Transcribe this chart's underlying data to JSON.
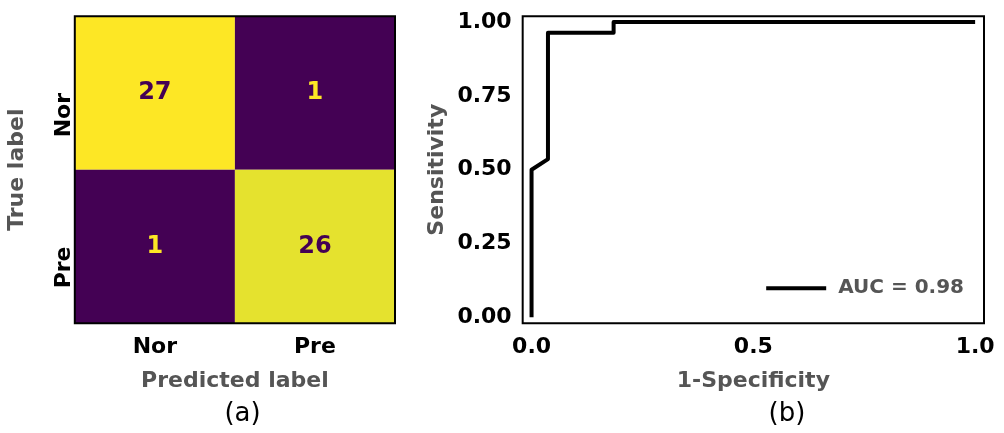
{
  "chart_data": [
    {
      "type": "heatmap",
      "categories": [
        "Nor",
        "Pre"
      ],
      "y_categories": [
        "Nor",
        "Pre"
      ],
      "cells": [
        [
          27,
          1
        ],
        [
          1,
          26
        ]
      ],
      "data_labels": true,
      "xlabel": "Predicted label",
      "ylabel": "True label",
      "annotations": [
        "(a)"
      ]
    },
    {
      "type": "line",
      "xlabel": "1-Specificity",
      "ylabel": "Sensitivity",
      "xlim": [
        -0.02,
        1.02
      ],
      "ylim": [
        -0.02,
        1.02
      ],
      "xticks": [
        {
          "value": 0,
          "label": "0.0"
        },
        {
          "value": 0.5,
          "label": "0.5"
        },
        {
          "value": 1,
          "label": "1.0"
        }
      ],
      "yticks": [
        {
          "value": 0,
          "label": "0.00"
        },
        {
          "value": 0.25,
          "label": "0.25"
        },
        {
          "value": 0.5,
          "label": "0.50"
        },
        {
          "value": 0.75,
          "label": "0.75"
        },
        {
          "value": 1,
          "label": "1.00"
        }
      ],
      "series": [
        {
          "name": "AUC = 0.98",
          "color": "#000000",
          "x": [
            0,
            0,
            0.037,
            0.037,
            0.185,
            0.185,
            1
          ],
          "values": [
            0,
            0.5,
            0.536,
            0.964,
            0.964,
            1,
            1
          ]
        }
      ],
      "legend": "bottom right",
      "grid": false,
      "annotations": [
        "(b)"
      ]
    }
  ]
}
